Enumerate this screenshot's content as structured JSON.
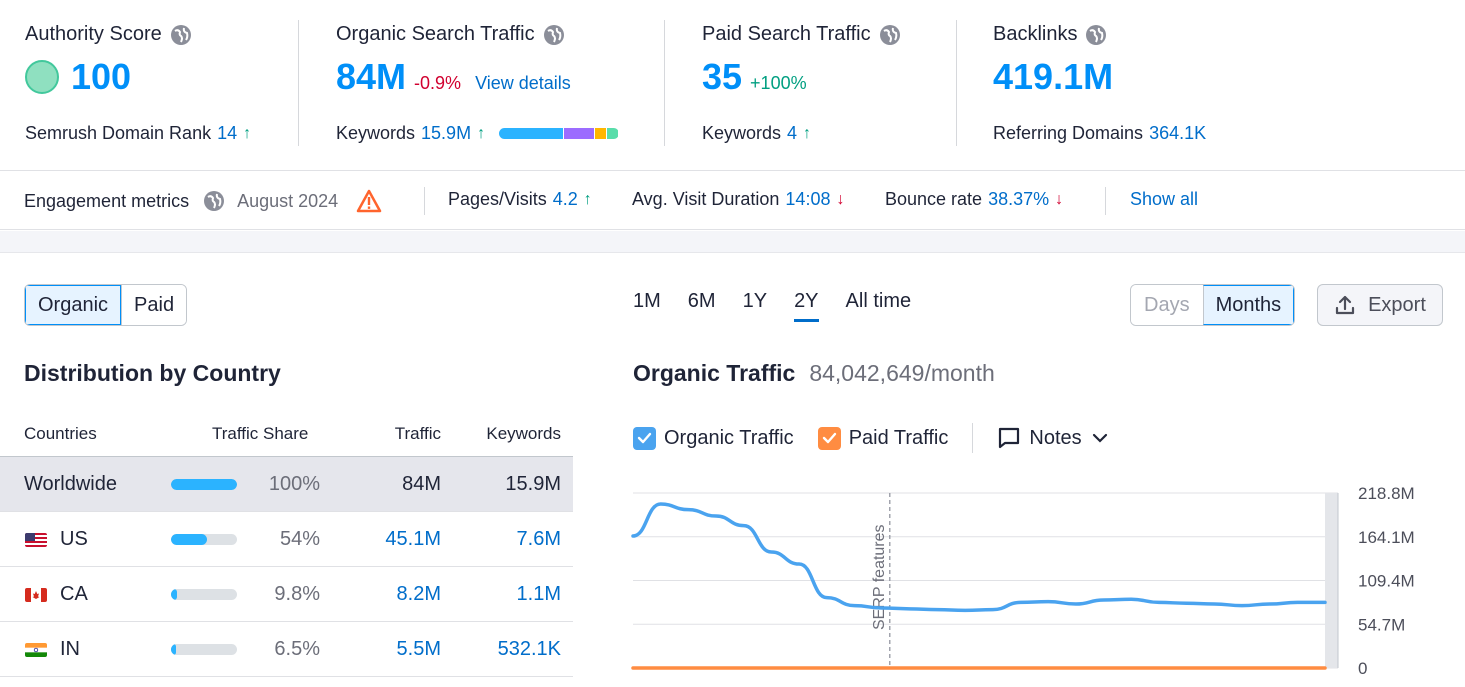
{
  "metrics": {
    "authority": {
      "title": "Authority Score",
      "value": "100",
      "sub_label": "Semrush Domain Rank",
      "sub_value": "14"
    },
    "organic": {
      "title": "Organic Search Traffic",
      "value": "84M",
      "delta": "-0.9%",
      "link": "View details",
      "sub_label": "Keywords",
      "sub_value": "15.9M"
    },
    "paid": {
      "title": "Paid Search Traffic",
      "value": "35",
      "delta": "+100%",
      "sub_label": "Keywords",
      "sub_value": "4"
    },
    "backlinks": {
      "title": "Backlinks",
      "value": "419.1M",
      "sub_label": "Referring Domains",
      "sub_value": "364.1K"
    }
  },
  "keyword_bar_colors": [
    "#2bb3ff",
    "#9c6cff",
    "#ffb700",
    "#59ddaa"
  ],
  "engagement": {
    "label": "Engagement metrics",
    "date": "August 2024",
    "pages_label": "Pages/Visits",
    "pages_value": "4.2",
    "duration_label": "Avg. Visit Duration",
    "duration_value": "14:08",
    "bounce_label": "Bounce rate",
    "bounce_value": "38.37%",
    "show_all": "Show all"
  },
  "traffic_toggle": {
    "organic": "Organic",
    "paid": "Paid"
  },
  "periods": [
    "1M",
    "6M",
    "1Y",
    "2Y",
    "All time"
  ],
  "granularity": {
    "days": "Days",
    "months": "Months"
  },
  "export_label": "Export",
  "distribution": {
    "title": "Distribution by Country",
    "headers": {
      "countries": "Countries",
      "share": "Traffic Share",
      "traffic": "Traffic",
      "keywords": "Keywords"
    },
    "rows": [
      {
        "country": "Worldwide",
        "share": "100%",
        "share_fraction": 1.0,
        "traffic": "84M",
        "keywords": "15.9M"
      },
      {
        "country": "US",
        "share": "54%",
        "share_fraction": 0.54,
        "traffic": "45.1M",
        "keywords": "7.6M"
      },
      {
        "country": "CA",
        "share": "9.8%",
        "share_fraction": 0.098,
        "traffic": "8.2M",
        "keywords": "1.1M"
      },
      {
        "country": "IN",
        "share": "6.5%",
        "share_fraction": 0.065,
        "traffic": "5.5M",
        "keywords": "532.1K"
      }
    ]
  },
  "chart_header": {
    "title": "Organic Traffic",
    "value": "84,042,649/month"
  },
  "legend": {
    "organic": "Organic Traffic",
    "paid": "Paid Traffic",
    "notes": "Notes"
  },
  "chart_data": {
    "type": "line",
    "y_ticks": [
      "218.8M",
      "164.1M",
      "109.4M",
      "54.7M",
      "0"
    ],
    "ylim": [
      0,
      218.8
    ],
    "annotation": "SERP features",
    "annotation_index": 10,
    "series": [
      {
        "name": "Organic Traffic",
        "color": "#4aa3ef",
        "values": [
          165,
          205,
          198,
          190,
          178,
          145,
          130,
          88,
          78,
          75,
          74,
          73,
          72,
          73,
          82,
          83,
          80,
          85,
          86,
          82,
          81,
          80,
          78,
          80,
          82,
          82
        ]
      },
      {
        "name": "Paid Traffic",
        "color": "#ff8c41",
        "values": [
          0,
          0,
          0,
          0,
          0,
          0,
          0,
          0,
          0,
          0,
          0,
          0,
          0,
          0,
          0,
          0,
          0,
          0,
          0,
          0,
          0,
          0,
          0,
          0,
          0,
          0
        ]
      }
    ]
  }
}
